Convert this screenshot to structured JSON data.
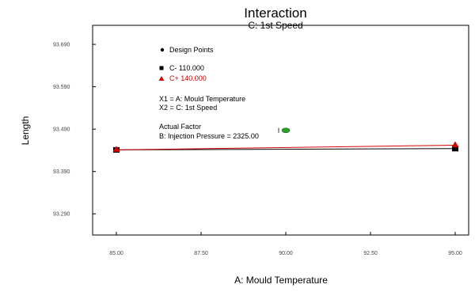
{
  "chart_data": {
    "type": "line",
    "title": "Interaction",
    "subtitle": "C: 1st Speed",
    "xlabel": "A: Mould Temperature",
    "ylabel": "Length",
    "xlim": [
      85.0,
      95.0
    ],
    "ylim": [
      93.24,
      93.735
    ],
    "x_ticks": [
      "85.00",
      "87.50",
      "90.00",
      "92.50",
      "95.00"
    ],
    "x_tick_values": [
      85.0,
      87.5,
      90.0,
      92.5,
      95.0
    ],
    "y_ticks": [
      "93.290",
      "93.390",
      "93.490",
      "93.590",
      "93.690"
    ],
    "y_tick_values": [
      93.29,
      93.39,
      93.49,
      93.59,
      93.69
    ],
    "grid": false,
    "legend": {
      "design_points_label": "Design Points",
      "minus_label": "C- 110.000",
      "plus_label": "C+ 140.000"
    },
    "notes": {
      "x1": "X1 = A: Mould Temperature",
      "x2": "X2 = C: 1st Speed",
      "actual_factor_heading": "Actual Factor",
      "actual_factor_value": "B: Injection Pressure = 2325.00"
    },
    "series": [
      {
        "name": "C- 110.000",
        "color": "#000000",
        "marker": "square",
        "x": [
          85.0,
          95.0
        ],
        "y": [
          93.441,
          93.444
        ]
      },
      {
        "name": "C+ 140.000",
        "color": "#d40000",
        "marker": "triangle",
        "x": [
          85.0,
          95.0
        ],
        "y": [
          93.441,
          93.452
        ]
      }
    ],
    "design_points": [
      {
        "x": 90.0,
        "y": 93.487,
        "color": "#2e9e2e"
      }
    ]
  }
}
